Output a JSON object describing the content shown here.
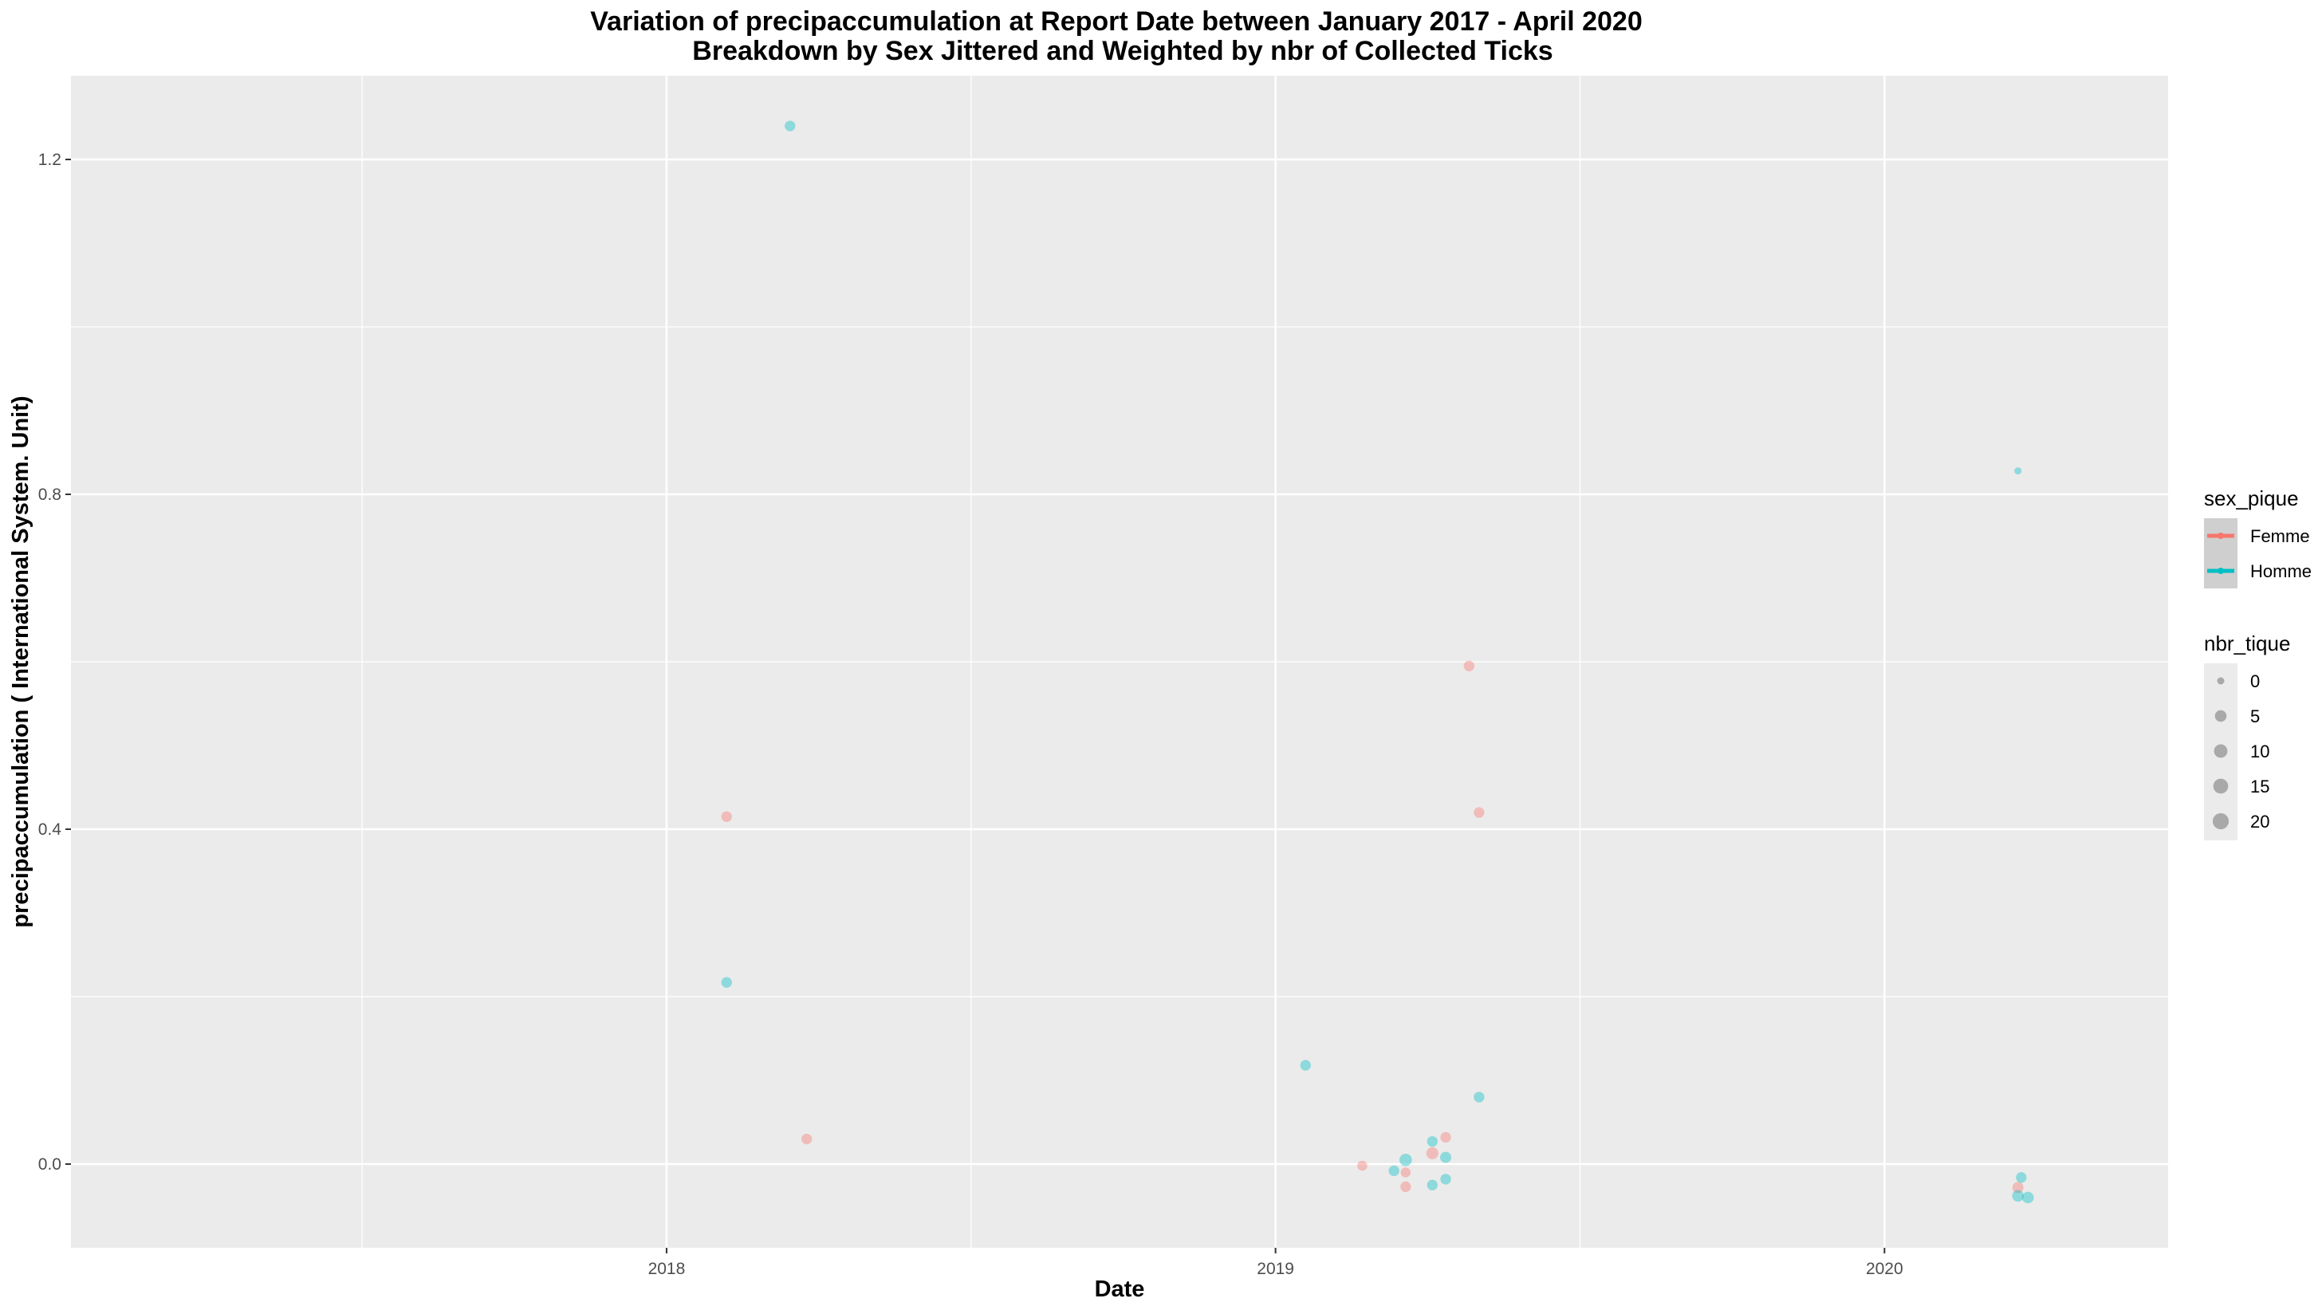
{
  "chart_data": {
    "type": "scatter",
    "title": "Variation of  precipaccumulation  at Report Date between January 2017 - April 2020",
    "subtitle": "Breakdown by Sex Jittered and Weighted by nbr of Collected Ticks",
    "xlabel": "Date",
    "ylabel": "precipaccumulation ( International System. Unit)",
    "xlim": [
      "2017-01-09",
      "2020-06-19"
    ],
    "ylim": [
      -0.1,
      1.3
    ],
    "x_ticks": [
      "2018",
      "2019",
      "2020"
    ],
    "x_tick_dates": [
      "2018-01-01",
      "2019-01-01",
      "2020-01-01"
    ],
    "y_ticks": [
      "0.0",
      "0.4",
      "0.8",
      "1.2"
    ],
    "y_tick_values": [
      0.0,
      0.4,
      0.8,
      1.2
    ],
    "grid": true,
    "legend_placement": "right",
    "colors": {
      "Femme": "#F8766D",
      "Homme": "#00BFC4",
      "panel": "#EBEBEB",
      "grid": "#FFFFFF"
    },
    "series": [
      {
        "name": "Femme",
        "points": [
          {
            "x": "2018-02-06",
            "y": 0.415,
            "size": 3
          },
          {
            "x": "2018-03-26",
            "y": 0.03,
            "size": 3
          },
          {
            "x": "2019-02-22",
            "y": -0.002,
            "size": 2
          },
          {
            "x": "2019-03-20",
            "y": -0.01,
            "size": 2
          },
          {
            "x": "2019-03-20",
            "y": -0.027,
            "size": 3
          },
          {
            "x": "2019-04-05",
            "y": 0.013,
            "size": 6
          },
          {
            "x": "2019-04-13",
            "y": 0.032,
            "size": 3
          },
          {
            "x": "2019-04-27",
            "y": 0.595,
            "size": 3
          },
          {
            "x": "2019-05-03",
            "y": 0.42,
            "size": 3
          },
          {
            "x": "2020-03-21",
            "y": -0.028,
            "size": 4
          }
        ]
      },
      {
        "name": "Homme",
        "points": [
          {
            "x": "2018-02-06",
            "y": 0.217,
            "size": 3
          },
          {
            "x": "2018-03-16",
            "y": 1.24,
            "size": 3
          },
          {
            "x": "2019-01-19",
            "y": 0.118,
            "size": 3
          },
          {
            "x": "2019-03-13",
            "y": -0.008,
            "size": 3
          },
          {
            "x": "2019-03-20",
            "y": 0.005,
            "size": 7
          },
          {
            "x": "2019-04-05",
            "y": 0.027,
            "size": 3
          },
          {
            "x": "2019-04-05",
            "y": -0.025,
            "size": 3
          },
          {
            "x": "2019-04-13",
            "y": 0.008,
            "size": 4
          },
          {
            "x": "2019-04-13",
            "y": -0.018,
            "size": 3
          },
          {
            "x": "2019-05-03",
            "y": 0.08,
            "size": 3
          },
          {
            "x": "2020-03-21",
            "y": 0.828,
            "size": 0
          },
          {
            "x": "2020-03-23",
            "y": -0.016,
            "size": 3
          },
          {
            "x": "2020-03-21",
            "y": -0.038,
            "size": 5
          },
          {
            "x": "2020-03-27",
            "y": -0.04,
            "size": 5
          }
        ]
      }
    ],
    "legend_color": {
      "title": "sex_pique",
      "entries": [
        "Femme",
        "Homme"
      ]
    },
    "legend_size": {
      "title": "nbr_tique",
      "entries": [
        {
          "label": "0",
          "value": 0
        },
        {
          "label": "5",
          "value": 5
        },
        {
          "label": "10",
          "value": 10
        },
        {
          "label": "15",
          "value": 15
        },
        {
          "label": "20",
          "value": 20
        }
      ]
    }
  }
}
